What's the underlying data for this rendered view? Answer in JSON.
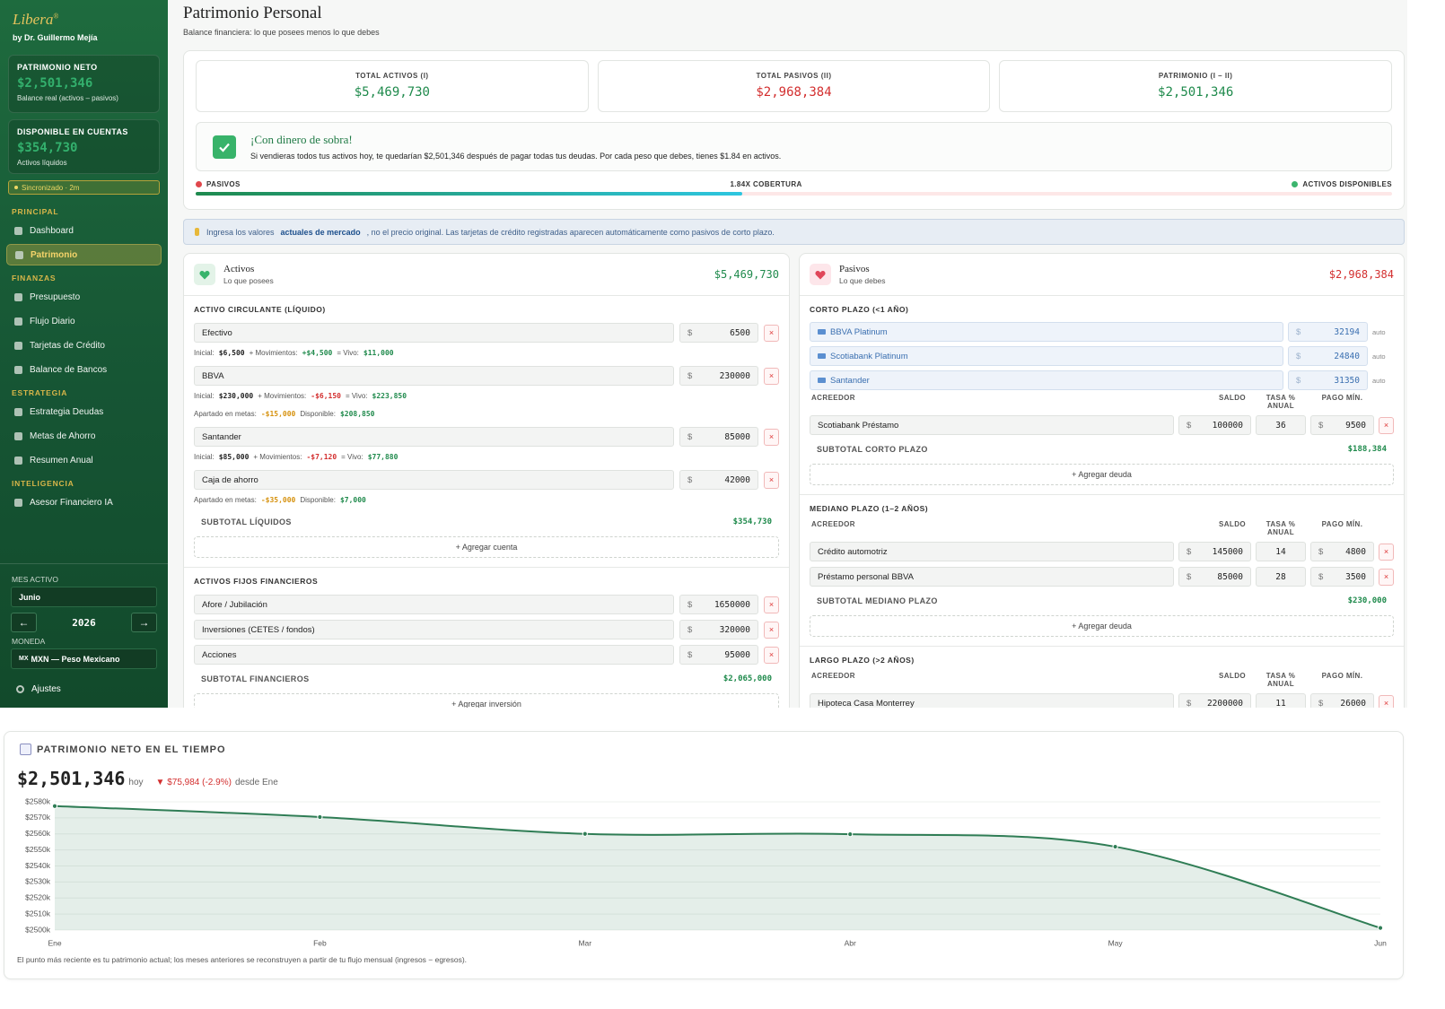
{
  "sidebar": {
    "brand": "Libera",
    "brand_mark": "®",
    "byline": "by Dr. Guillermo Mejía",
    "cards": [
      {
        "label": "PATRIMONIO NETO",
        "value": "$2,501,346",
        "note": "Balance real (activos – pasivos)"
      },
      {
        "label": "DISPONIBLE EN CUENTAS",
        "value": "$354,730",
        "note": "Activos líquidos"
      }
    ],
    "sync": "Sincronizado · 2m",
    "nav": [
      {
        "title": "PRINCIPAL",
        "items": [
          "Dashboard",
          "Patrimonio"
        ]
      },
      {
        "title": "FINANZAS",
        "items": [
          "Presupuesto",
          "Flujo Diario",
          "Tarjetas de Crédito",
          "Balance de Bancos"
        ]
      },
      {
        "title": "ESTRATEGIA",
        "items": [
          "Estrategia Deudas",
          "Metas de Ahorro",
          "Resumen Anual"
        ]
      },
      {
        "title": "INTELIGENCIA",
        "items": [
          "Asesor Financiero IA"
        ]
      }
    ],
    "active_item": "Patrimonio",
    "month_label": "MES ACTIVO",
    "month": "Junio",
    "prev": "←",
    "year": "2026",
    "next": "→",
    "currency_label": "MONEDA",
    "currency_code": "MX",
    "currency": "MXN — Peso Mexicano",
    "settings": "Ajustes"
  },
  "header": {
    "title": "Patrimonio Personal",
    "subtitle": "Balance financiera: lo que posees menos lo que debes"
  },
  "summary": [
    {
      "label": "TOTAL ACTIVOS (I)",
      "value": "$5,469,730",
      "tone": "green"
    },
    {
      "label": "TOTAL PASIVOS (II)",
      "value": "$2,968,384",
      "tone": "red"
    },
    {
      "label": "PATRIMONIO (I – II)",
      "value": "$2,501,346",
      "tone": "green"
    }
  ],
  "status": {
    "title": "¡Con dinero de sobra!",
    "text": "Si vendieras todos tus activos hoy, te quedarían $2,501,346 después de pagar todas tus deudas. Por cada peso que debes, tienes $1.84 en activos."
  },
  "coverage": {
    "left": "PASIVOS",
    "center": "1.84X COBERTURA",
    "right": "ACTIVOS DISPONIBLES"
  },
  "notice": {
    "before": "Ingresa los valores",
    "strong": "actuales de mercado",
    "after": ", no el precio original. Las tarjetas de crédito registradas aparecen automáticamente como pasivos de corto plazo."
  },
  "assets": {
    "title": "Activos",
    "subtitle": "Lo que posees",
    "total": "$5,469,730",
    "sections": [
      {
        "title": "ACTIVO CIRCULANTE (LÍQUIDO)",
        "rows": [
          {
            "name": "Efectivo",
            "currency": "$",
            "amount": "6500",
            "remove": "×",
            "details": [
              [
                {
                  "text": "Inicial:"
                },
                {
                  "text": "$6,500",
                  "tone": "dark"
                },
                {
                  "text": "+ Movimientos:"
                },
                {
                  "text": "+$4,500",
                  "tone": "green"
                },
                {
                  "text": "= Vivo:"
                },
                {
                  "text": "$11,000",
                  "tone": "green"
                }
              ]
            ]
          },
          {
            "name": "BBVA",
            "currency": "$",
            "amount": "230000",
            "remove": "×",
            "details": [
              [
                {
                  "text": "Inicial:"
                },
                {
                  "text": "$230,000",
                  "tone": "dark"
                },
                {
                  "text": "+ Movimientos:"
                },
                {
                  "text": "-$6,150",
                  "tone": "red"
                },
                {
                  "text": "= Vivo:"
                },
                {
                  "text": "$223,850",
                  "tone": "green"
                }
              ],
              [
                {
                  "text": "Apartado en metas:"
                },
                {
                  "text": "-$15,000",
                  "tone": "orange"
                },
                {
                  "text": "Disponible:"
                },
                {
                  "text": "$208,850",
                  "tone": "green"
                }
              ]
            ]
          },
          {
            "name": "Santander",
            "currency": "$",
            "amount": "85000",
            "remove": "×",
            "details": [
              [
                {
                  "text": "Inicial:"
                },
                {
                  "text": "$85,000",
                  "tone": "dark"
                },
                {
                  "text": "+ Movimientos:"
                },
                {
                  "text": "-$7,120",
                  "tone": "red"
                },
                {
                  "text": "= Vivo:"
                },
                {
                  "text": "$77,880",
                  "tone": "green"
                }
              ]
            ]
          },
          {
            "name": "Caja de ahorro",
            "currency": "$",
            "amount": "42000",
            "remove": "×",
            "details": [
              [
                {
                  "text": "Apartado en metas:"
                },
                {
                  "text": "-$35,000",
                  "tone": "orange"
                },
                {
                  "text": "Disponible:"
                },
                {
                  "text": "$7,000",
                  "tone": "green"
                }
              ]
            ]
          }
        ],
        "subtotal_label": "SUBTOTAL LÍQUIDOS",
        "subtotal": "$354,730",
        "add": "+ Agregar cuenta"
      },
      {
        "title": "ACTIVOS FIJOS FINANCIEROS",
        "rows": [
          {
            "name": "Afore / Jubilación",
            "currency": "$",
            "amount": "1650000",
            "remove": "×",
            "details": []
          },
          {
            "name": "Inversiones (CETES / fondos)",
            "currency": "$",
            "amount": "320000",
            "remove": "×",
            "details": []
          },
          {
            "name": "Acciones",
            "currency": "$",
            "amount": "95000",
            "remove": "×",
            "details": []
          }
        ],
        "subtotal_label": "SUBTOTAL FINANCIEROS",
        "subtotal": "$2,065,000",
        "add": "+ Agregar inversión"
      }
    ]
  },
  "liabilities": {
    "title": "Pasivos",
    "subtitle": "Lo que debes",
    "total": "$2,968,384",
    "sections": [
      {
        "title": "CORTO PLAZO (<1 AÑO)",
        "cards": [
          {
            "name": "BBVA Platinum",
            "currency": "$",
            "amount": "32194",
            "tag": "auto"
          },
          {
            "name": "Scotiabank Platinum",
            "currency": "$",
            "amount": "24840",
            "tag": "auto"
          },
          {
            "name": "Santander",
            "currency": "$",
            "amount": "31350",
            "tag": "auto"
          }
        ],
        "columns": [
          "ACREEDOR",
          "SALDO",
          "TASA % ANUAL",
          "PAGO MÍN."
        ],
        "rows": [
          {
            "name": "Scotiabank Préstamo",
            "currency": "$",
            "balance": "100000",
            "rate": "36",
            "payment_currency": "$",
            "payment": "9500",
            "remove": "×"
          }
        ],
        "subtotal_label": "SUBTOTAL CORTO PLAZO",
        "subtotal": "$188,384",
        "add": "+ Agregar deuda"
      },
      {
        "title": "MEDIANO PLAZO (1–2 AÑOS)",
        "columns": [
          "ACREEDOR",
          "SALDO",
          "TASA % ANUAL",
          "PAGO MÍN."
        ],
        "rows": [
          {
            "name": "Crédito automotriz",
            "currency": "$",
            "balance": "145000",
            "rate": "14",
            "payment_currency": "$",
            "payment": "4800",
            "remove": "×"
          },
          {
            "name": "Préstamo personal BBVA",
            "currency": "$",
            "balance": "85000",
            "rate": "28",
            "payment_currency": "$",
            "payment": "3500",
            "remove": "×"
          }
        ],
        "subtotal_label": "SUBTOTAL MEDIANO PLAZO",
        "subtotal": "$230,000",
        "add": "+ Agregar deuda"
      },
      {
        "title": "LARGO PLAZO (>2 AÑOS)",
        "columns": [
          "ACREEDOR",
          "SALDO",
          "TASA % ANUAL",
          "PAGO MÍN."
        ],
        "rows": [
          {
            "name": "Hipoteca Casa Monterrey",
            "currency": "$",
            "balance": "2200000",
            "rate": "11",
            "payment_currency": "$",
            "payment": "26000",
            "remove": "×"
          }
        ]
      }
    ]
  },
  "chart_data": {
    "type": "area",
    "title": "PATRIMONIO NETO EN EL TIEMPO",
    "current_value": "$2,501,346",
    "current_label": "hoy",
    "change": "▼ $75,984 (-2.9%)",
    "change_label": "desde Ene",
    "footnote": "El punto más reciente es tu patrimonio actual; los meses anteriores se reconstruyen a partir de tu flujo mensual (ingresos − egresos).",
    "categories": [
      "Ene",
      "Feb",
      "Mar",
      "Abr",
      "May",
      "Jun"
    ],
    "values": [
      2577330,
      2570500,
      2560000,
      2559800,
      2552000,
      2501346
    ],
    "color": "#2f7d55",
    "ylim": [
      2500000,
      2580000
    ],
    "yticks": [
      {
        "value": 2500000,
        "label": "$2500k"
      },
      {
        "value": 2510000,
        "label": "$2510k"
      },
      {
        "value": 2520000,
        "label": "$2520k"
      },
      {
        "value": 2530000,
        "label": "$2530k"
      },
      {
        "value": 2540000,
        "label": "$2540k"
      },
      {
        "value": 2550000,
        "label": "$2550k"
      },
      {
        "value": 2560000,
        "label": "$2560k"
      },
      {
        "value": 2570000,
        "label": "$2570k"
      },
      {
        "value": 2580000,
        "label": "$2580k"
      }
    ],
    "grid": true
  }
}
